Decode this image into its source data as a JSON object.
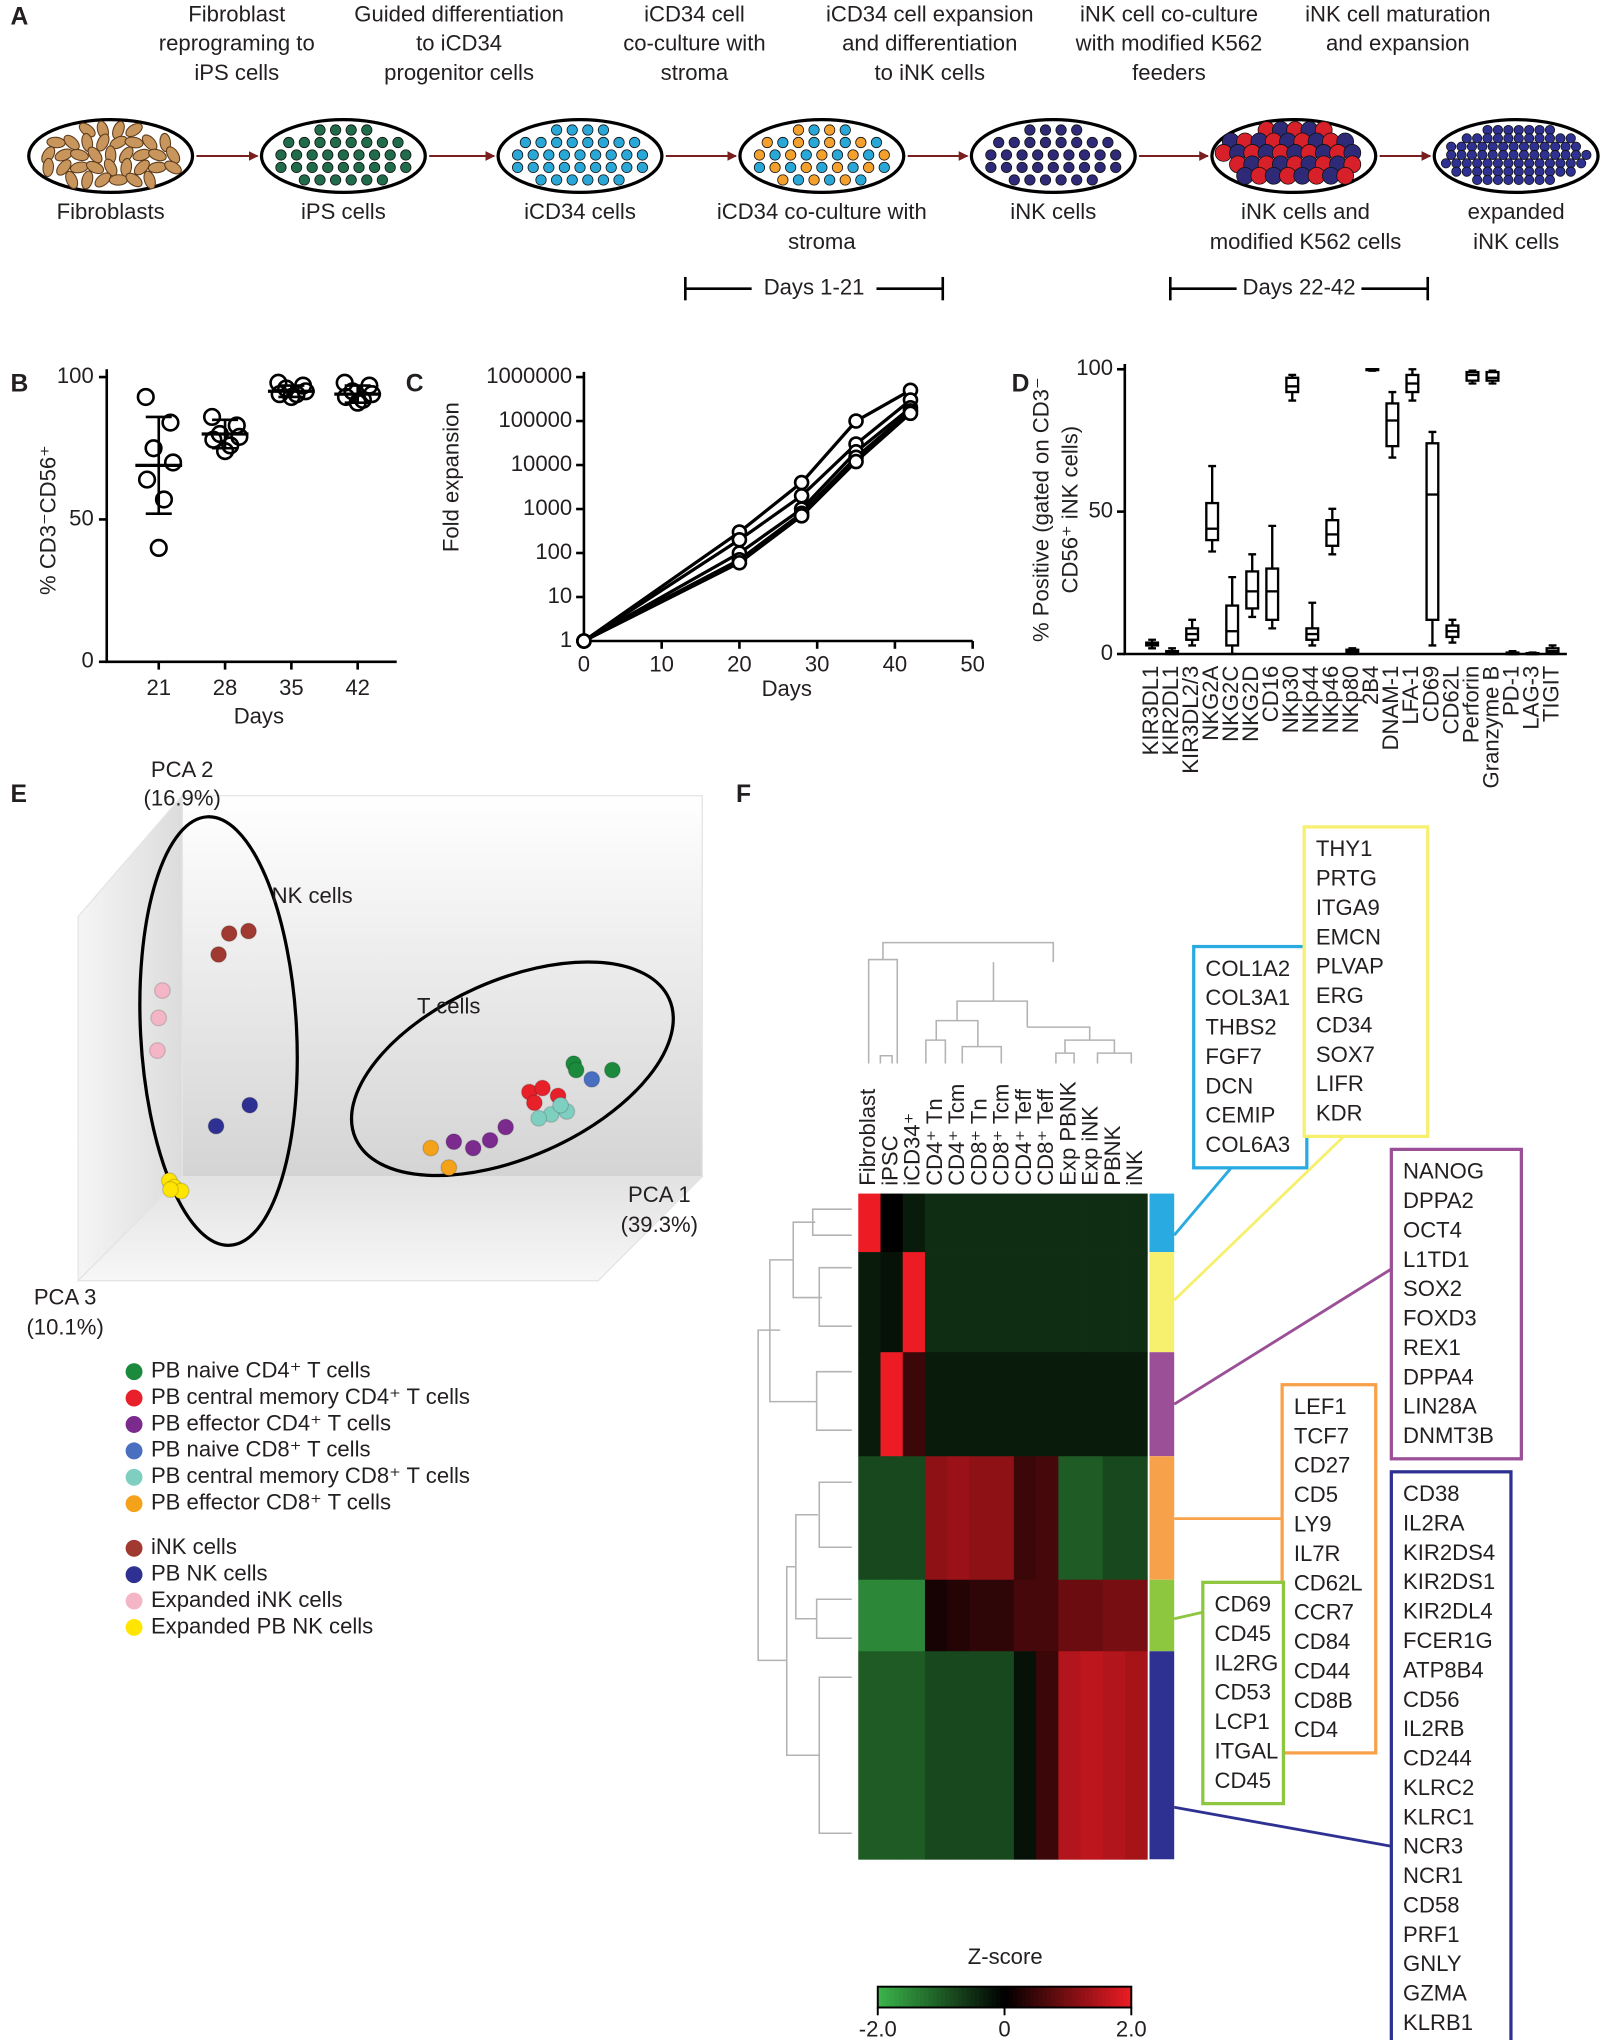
{
  "panel_labels": [
    "A",
    "B",
    "C",
    "D",
    "E",
    "F"
  ],
  "workflow": {
    "steps": [
      [
        "Fibroblast",
        "reprograming to",
        "iPS cells"
      ],
      [
        "Guided differentiation",
        "to iCD34",
        "progenitor cells"
      ],
      [
        "iCD34 cell",
        "co-culture with",
        "stroma"
      ],
      [
        "iCD34 cell expansion",
        "and differentiation",
        "to iNK cells"
      ],
      [
        "iNK cell co-culture",
        "with modified K562",
        "feeders"
      ],
      [
        "iNK cell maturation",
        "and expansion"
      ]
    ],
    "stages": [
      [
        "Fibroblasts"
      ],
      [
        "iPS cells"
      ],
      [
        "iCD34 cells"
      ],
      [
        "iCD34 co-culture with",
        "stroma"
      ],
      [
        "iNK cells"
      ],
      [
        "iNK cells and",
        "modified K562 cells"
      ],
      [
        "expanded",
        "iNK cells"
      ]
    ],
    "periods": [
      "Days 1-21",
      "Days 22-42"
    ]
  },
  "chart_data": [
    {
      "type": "dot",
      "y_label": "% CD3⁻CD56⁺",
      "x_label": "Days",
      "categories": [
        "21",
        "28",
        "35",
        "42"
      ],
      "values": [
        [
          93,
          84,
          75,
          70,
          64,
          57,
          40
        ],
        [
          86,
          83,
          80,
          79,
          78,
          76,
          74
        ],
        [
          98,
          97,
          96,
          95,
          94,
          94,
          93
        ],
        [
          98,
          97,
          95,
          94,
          93,
          92,
          91
        ]
      ],
      "mean": [
        69,
        80,
        95,
        94
      ],
      "sd": [
        17,
        5,
        2,
        3
      ],
      "ylim": [
        0,
        100
      ],
      "yticks": [
        0,
        50,
        100
      ],
      "color": "#000000"
    },
    {
      "type": "line",
      "y_label": "Fold expansion",
      "x_label": "Days",
      "x": [
        0,
        20,
        28,
        35,
        42
      ],
      "series": [
        {
          "values": [
            1,
            300,
            4000,
            100000,
            500000
          ]
        },
        {
          "values": [
            1,
            200,
            2000,
            30000,
            300000
          ]
        },
        {
          "values": [
            1,
            100,
            1000,
            20000,
            200000
          ]
        },
        {
          "values": [
            1,
            70,
            800,
            15000,
            170000
          ]
        },
        {
          "values": [
            1,
            60,
            700,
            12000,
            150000
          ]
        }
      ],
      "xlim": [
        0,
        50
      ],
      "xticks": [
        0,
        10,
        20,
        30,
        40,
        50
      ],
      "ylim": [
        1,
        1000000
      ],
      "yticks": [
        1,
        10,
        100,
        1000,
        10000,
        100000,
        1000000
      ],
      "log_y": true,
      "color": "#000000"
    },
    {
      "type": "box",
      "y_label": [
        "% Positive (gated on CD3⁻",
        "CD56⁺ iNK cells)"
      ],
      "categories": [
        "KIR3DL1",
        "KIR2DL1",
        "KIR3DL2/3",
        "NKG2A",
        "NKG2C",
        "NKG2D",
        "CD16",
        "NKp30",
        "NKp44",
        "NKp46",
        "NKp80",
        "2B4",
        "DNAM-1",
        "LFA-1",
        "CD69",
        "CD62L",
        "Perforin",
        "Granzyme B",
        "PD-1",
        "LAG-3",
        "TIGIT"
      ],
      "boxes": [
        [
          2,
          3,
          3.5,
          4,
          5
        ],
        [
          0,
          0,
          0.5,
          1,
          2
        ],
        [
          3,
          5,
          7,
          9,
          12
        ],
        [
          36,
          40,
          44,
          53,
          66
        ],
        [
          0,
          3,
          8,
          17,
          27
        ],
        [
          13,
          16,
          22,
          29,
          35
        ],
        [
          9,
          12,
          22,
          30,
          45
        ],
        [
          89,
          92,
          94,
          97,
          98
        ],
        [
          3,
          5,
          7,
          9,
          18
        ],
        [
          35,
          38,
          42,
          47,
          51
        ],
        [
          0,
          0.5,
          1,
          1.5,
          2
        ],
        [
          99.5,
          99.7,
          100,
          100,
          100
        ],
        [
          69,
          73,
          82,
          88,
          92
        ],
        [
          89,
          92,
          95,
          98,
          100
        ],
        [
          3,
          12,
          56,
          74,
          78
        ],
        [
          4,
          6,
          8,
          10,
          12
        ],
        [
          95,
          96,
          98,
          99,
          99.5
        ],
        [
          95,
          96,
          97,
          99,
          99.5
        ],
        [
          0,
          0,
          0,
          0.5,
          1
        ],
        [
          0,
          0,
          0,
          0.3,
          0.5
        ],
        [
          0,
          0.5,
          1,
          2,
          3
        ]
      ],
      "ylim": [
        0,
        100
      ],
      "yticks": [
        0,
        50,
        100
      ],
      "color": "#000000"
    },
    {
      "type": "scatter",
      "x_label": [
        "PCA 1",
        "(39.3%)"
      ],
      "y_label": [
        "PCA 2",
        "(16.9%)"
      ],
      "z_label": [
        "PCA 3",
        "(10.1%)"
      ],
      "annotations": [
        "NK cells",
        "T cells"
      ],
      "xlim": [
        0,
        100
      ],
      "ylim": [
        0,
        100
      ],
      "series": [
        {
          "name": "PB naive CD4⁺ T cells",
          "color": "#1b8a3c",
          "x": [
            79.4,
            79.8,
            85.6
          ],
          "y": [
            44.5,
            43.2,
            43.2
          ]
        },
        {
          "name": "PB central memory CD4⁺ T cells",
          "color": "#e8202a",
          "x": [
            72.3,
            74.4,
            76.9,
            73.1
          ],
          "y": [
            38.7,
            39.5,
            37.9,
            36.5
          ]
        },
        {
          "name": "PB effector CD4⁺ T cells",
          "color": "#7b2b8e",
          "x": [
            60.2,
            63.3,
            66.0,
            68.5
          ],
          "y": [
            28.5,
            27.2,
            28.8,
            31.5
          ]
        },
        {
          "name": "PB naive CD8⁺ T cells",
          "color": "#4a6fc0",
          "x": [
            82.3
          ],
          "y": [
            41.3
          ]
        },
        {
          "name": "PB central memory CD8⁺ T cells",
          "color": "#7fcfc1",
          "x": [
            75.8,
            78.3,
            73.8,
            77.3
          ],
          "y": [
            34.1,
            34.7,
            33.3,
            36.0
          ]
        },
        {
          "name": "PB effector CD8⁺ T cells",
          "color": "#f4a21a",
          "x": [
            56.5,
            59.4
          ],
          "y": [
            27.2,
            23.2
          ]
        },
        {
          "name": "iNK cells",
          "color": "#a0392f",
          "x": [
            24.2,
            27.3,
            22.5
          ],
          "y": [
            71.2,
            71.7,
            66.9
          ]
        },
        {
          "name": "PB NK cells",
          "color": "#2e3192",
          "x": [
            22.1,
            27.5
          ],
          "y": [
            31.7,
            36.0
          ]
        },
        {
          "name": "Expanded iNK cells",
          "color": "#f4b6c6",
          "x": [
            13.5,
            12.9,
            12.7
          ],
          "y": [
            59.5,
            53.9,
            47.2
          ]
        },
        {
          "name": "Expanded PB NK cells",
          "color": "#ffe500",
          "x": [
            14.6,
            15.4,
            16.5,
            14.8
          ],
          "y": [
            20.5,
            19.2,
            18.4,
            18.7
          ]
        }
      ]
    },
    {
      "type": "heatmap",
      "columns": [
        "Fibroblast",
        "iPSC",
        "iCD34⁺",
        "CD4⁺ Tn",
        "CD4⁺ Tcm",
        "CD8⁺ Tn",
        "CD8⁺ Tcm",
        "CD4⁺ Teff",
        "CD8⁺ Teff",
        "Exp PBNK",
        "Exp iNK",
        "PBNK",
        "iNK"
      ],
      "clusters": [
        {
          "color": "#29abe2",
          "genes": [
            "COL1A2",
            "COL3A1",
            "THBS2",
            "FGF7",
            "DCN",
            "CEMIP",
            "COL6A3"
          ],
          "values": [
            2,
            0,
            -0.3,
            -0.5,
            -0.5,
            -0.5,
            -0.5,
            -0.5,
            -0.5,
            -0.5,
            -0.5,
            -0.5,
            -0.5
          ]
        },
        {
          "color": "#f7ef6e",
          "genes": [
            "THY1",
            "PRTG",
            "ITGA9",
            "EMCN",
            "PLVAP",
            "ERG",
            "CD34",
            "SOX7",
            "LIFR",
            "KDR"
          ],
          "values": [
            -0.3,
            -0.2,
            2,
            -0.5,
            -0.5,
            -0.5,
            -0.5,
            -0.5,
            -0.5,
            -0.5,
            -0.5,
            -0.5,
            -0.5
          ]
        },
        {
          "color": "#9b4f96",
          "genes": [
            "NANOG",
            "DPPA2",
            "OCT4",
            "L1TD1",
            "SOX2",
            "FOXD3",
            "REX1",
            "DPPA4",
            "LIN28A",
            "DNMT3B"
          ],
          "values": [
            -0.3,
            2,
            0.5,
            -0.3,
            -0.3,
            -0.3,
            -0.3,
            -0.3,
            -0.3,
            -0.3,
            -0.3,
            -0.3,
            -0.3
          ]
        },
        {
          "color": "#f7a24a",
          "genes": [
            "LEF1",
            "TCF7",
            "CD27",
            "CD5",
            "LY9",
            "IL7R",
            "CD62L",
            "CCR7",
            "CD84",
            "CD44",
            "CD8B",
            "CD4"
          ],
          "values": [
            -0.8,
            -0.8,
            -0.8,
            1.2,
            1.3,
            1.2,
            1.2,
            0.5,
            0.6,
            -1,
            -1,
            -0.8,
            -0.8
          ]
        },
        {
          "color": "#8dc63f",
          "genes": [
            "CD69",
            "CD45",
            "IL2RG",
            "CD53",
            "LCP1",
            "ITGAL",
            "CD45"
          ],
          "values": [
            -1.5,
            -1.5,
            -1.5,
            0.2,
            0.3,
            0.4,
            0.4,
            0.6,
            0.6,
            0.9,
            0.9,
            1,
            1
          ]
        },
        {
          "color": "#2e3192",
          "genes": [
            "CD38",
            "IL2RA",
            "KIR2DS4",
            "KIR2DS1",
            "KIR2DL4",
            "FCER1G",
            "ATP8B4",
            "CD56",
            "IL2RB",
            "CD244",
            "KLRC2",
            "KLRC1",
            "NCR3",
            "NCR1",
            "CD58",
            "PRF1",
            "GNLY",
            "GZMA",
            "KLRB1"
          ],
          "values": [
            -1,
            -1,
            -1,
            -0.8,
            -0.8,
            -0.8,
            -0.8,
            -0.2,
            0.5,
            1.5,
            1.6,
            1.5,
            1.4
          ]
        }
      ],
      "colorbar_label": "Z-score",
      "clim": [
        -2,
        2
      ],
      "cticks": [
        {
          "value": -2,
          "label": "-2.0"
        },
        0,
        {
          "value": 2,
          "label": "2.0"
        }
      ],
      "colors": [
        "#3bb54a",
        "#000000",
        "#ed1c24"
      ]
    }
  ]
}
